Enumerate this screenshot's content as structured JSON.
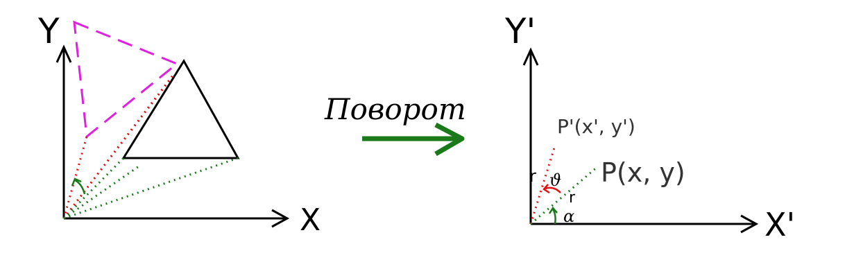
{
  "left_diagram": {
    "x_axis_label": "X",
    "y_axis_label": "Y"
  },
  "arrow": {
    "label": "Поворот",
    "color": "#1a7a1a"
  },
  "right_diagram": {
    "x_axis_label": "X'",
    "y_axis_label": "Y'",
    "point_p": "P(x, y)",
    "point_p_prime": "P'(x', y')",
    "radius_label_1": "r",
    "radius_label_2": "r",
    "angle_theta": "ϑ",
    "angle_alpha": "α"
  },
  "colors": {
    "triangle": "#000000",
    "rotated_triangle": "#e020e0",
    "red_dotted": "#e01010",
    "green_dotted": "#1a7a1a"
  }
}
